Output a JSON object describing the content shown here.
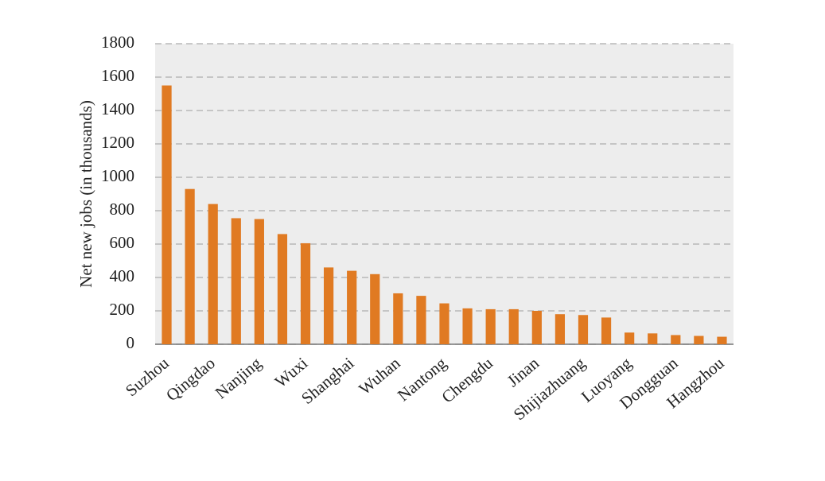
{
  "chart_data": {
    "type": "bar",
    "y_label": "Net new jobs (in thousands)",
    "categories": [
      "Suzhou",
      null,
      "Qingdao",
      null,
      "Nanjing",
      null,
      "Wuxi",
      null,
      "Shanghai",
      null,
      "Wuhan",
      null,
      "Nantong",
      null,
      "Chengdu",
      null,
      "Jinan",
      null,
      "Shijiazhuang",
      null,
      "Luoyang",
      null,
      "Dongguan",
      null,
      "Hangzhou"
    ],
    "values": [
      1550,
      930,
      840,
      755,
      750,
      660,
      605,
      460,
      440,
      420,
      305,
      290,
      245,
      215,
      210,
      210,
      200,
      180,
      175,
      160,
      70,
      65,
      55,
      50,
      45
    ],
    "color": "#e07a22",
    "ylim": [
      0,
      1800
    ],
    "yticks": [
      0,
      200,
      400,
      600,
      800,
      1000,
      1200,
      1400,
      1600,
      1800
    ],
    "grid": true
  }
}
